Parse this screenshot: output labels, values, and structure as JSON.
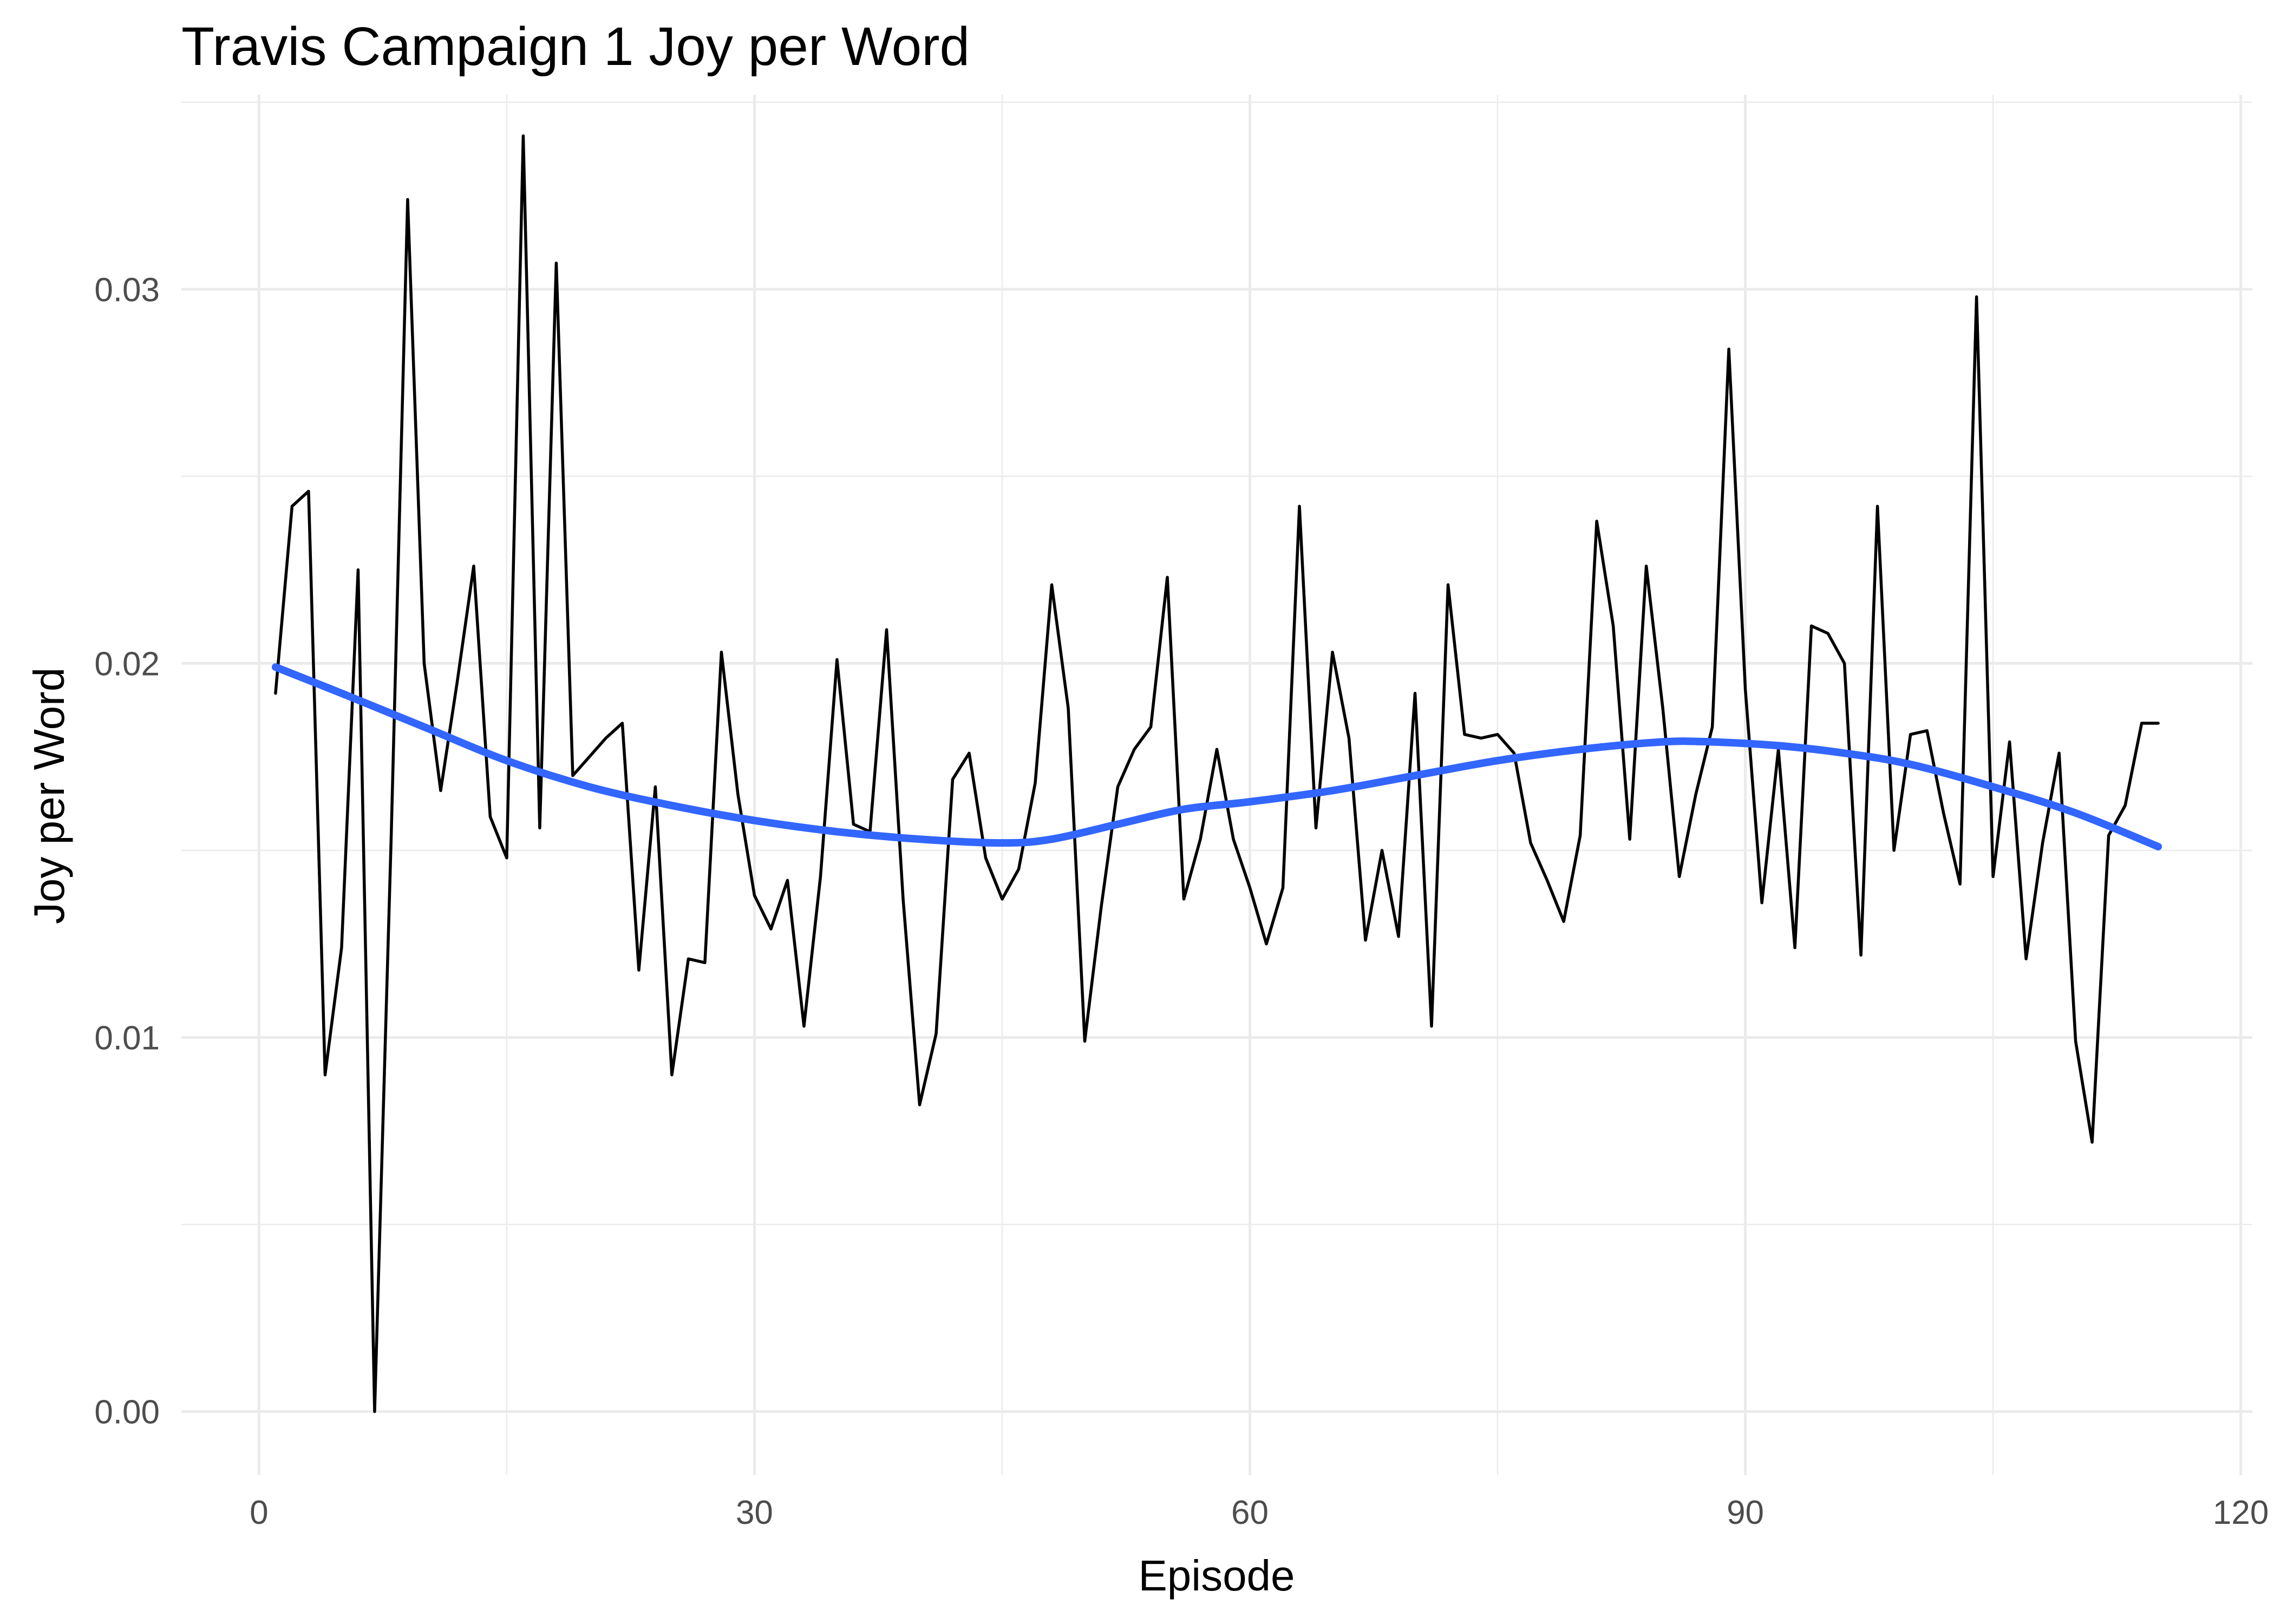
{
  "chart_data": {
    "type": "line",
    "title": "Travis Campaign 1 Joy per Word",
    "xlabel": "Episode",
    "ylabel": "Joy per Word",
    "xlim": [
      -4.7,
      120.7
    ],
    "ylim": [
      -0.0017,
      0.0352
    ],
    "x_ticks": [
      0,
      30,
      60,
      90,
      120
    ],
    "y_ticks": [
      0.0,
      0.01,
      0.02,
      0.03
    ],
    "x_tick_labels": [
      "0",
      "30",
      "60",
      "90",
      "120"
    ],
    "y_tick_labels": [
      "0.00",
      "0.01",
      "0.02",
      "0.03"
    ],
    "grid": true,
    "legend": "none",
    "series": [
      {
        "style": "raw",
        "color": "#000000",
        "x": [
          1,
          2,
          3,
          4,
          5,
          6,
          7,
          8,
          9,
          10,
          11,
          12,
          13,
          14,
          15,
          16,
          17,
          18,
          19,
          20,
          21,
          22,
          23,
          24,
          25,
          26,
          27,
          28,
          29,
          30,
          31,
          32,
          33,
          34,
          35,
          36,
          37,
          38,
          39,
          40,
          41,
          42,
          43,
          44,
          45,
          46,
          47,
          48,
          49,
          50,
          51,
          52,
          53,
          54,
          55,
          56,
          57,
          58,
          59,
          60,
          61,
          62,
          63,
          64,
          65,
          66,
          67,
          68,
          69,
          70,
          71,
          72,
          73,
          74,
          75,
          76,
          77,
          78,
          79,
          80,
          81,
          82,
          83,
          84,
          85,
          86,
          87,
          88,
          89,
          90,
          91,
          92,
          93,
          94,
          95,
          96,
          97,
          98,
          99,
          100,
          101,
          102,
          103,
          104,
          105,
          106,
          107,
          108,
          109,
          110,
          111,
          112,
          113,
          114,
          115
        ],
        "y": [
          0.0192,
          0.0242,
          0.0246,
          0.009,
          0.0124,
          0.0225,
          0.0,
          0.0153,
          0.0324,
          0.02,
          0.0166,
          0.0195,
          0.0226,
          0.0159,
          0.0148,
          0.0341,
          0.0156,
          0.0307,
          0.017,
          0.0175,
          0.018,
          0.0184,
          0.0118,
          0.0167,
          0.009,
          0.0121,
          0.012,
          0.0203,
          0.0165,
          0.0138,
          0.0129,
          0.0142,
          0.0103,
          0.0143,
          0.0201,
          0.0157,
          0.0155,
          0.0209,
          0.0137,
          0.0082,
          0.0101,
          0.0169,
          0.0176,
          0.0148,
          0.0137,
          0.0145,
          0.0168,
          0.0221,
          0.0188,
          0.0099,
          0.0135,
          0.0167,
          0.0177,
          0.0183,
          0.0223,
          0.0137,
          0.0153,
          0.0177,
          0.0153,
          0.014,
          0.0125,
          0.014,
          0.0242,
          0.0156,
          0.0203,
          0.018,
          0.0126,
          0.015,
          0.0127,
          0.0192,
          0.0103,
          0.0221,
          0.0181,
          0.018,
          0.0181,
          0.0176,
          0.0152,
          0.0142,
          0.0131,
          0.0154,
          0.0238,
          0.021,
          0.0153,
          0.0226,
          0.0188,
          0.0143,
          0.0165,
          0.0183,
          0.0284,
          0.0193,
          0.0136,
          0.0177,
          0.0124,
          0.021,
          0.0208,
          0.02,
          0.0122,
          0.0242,
          0.015,
          0.0181,
          0.0182,
          0.016,
          0.0141,
          0.0298,
          0.0143,
          0.0179,
          0.0121,
          0.0152,
          0.0176,
          0.0099,
          0.0072,
          0.0154,
          0.0162,
          0.0184,
          0.0184
        ]
      },
      {
        "style": "smooth",
        "color": "#3366FF",
        "x": [
          1,
          5,
          10,
          15,
          20,
          25,
          30,
          35,
          40,
          45,
          48,
          52,
          56,
          60,
          65,
          70,
          75,
          80,
          85,
          88,
          92,
          96,
          100,
          105,
          110,
          115
        ],
        "y": [
          0.0199,
          0.0192,
          0.0183,
          0.0174,
          0.0167,
          0.0162,
          0.0158,
          0.0155,
          0.0153,
          0.0152,
          0.0153,
          0.0157,
          0.0161,
          0.0163,
          0.0166,
          0.017,
          0.0174,
          0.0177,
          0.0179,
          0.0179,
          0.0178,
          0.0176,
          0.0173,
          0.0167,
          0.016,
          0.0151
        ]
      }
    ]
  }
}
